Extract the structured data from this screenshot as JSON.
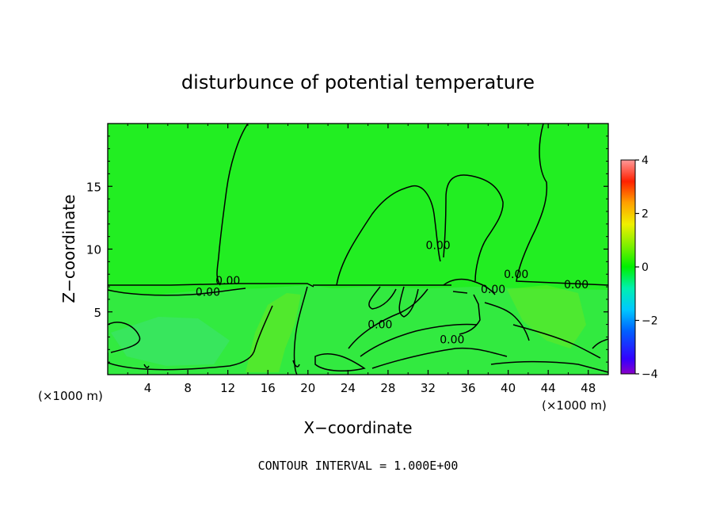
{
  "chart_data": {
    "type": "heatmap",
    "title": "disturbunce of potential temperature",
    "xlabel": "X−coordinate",
    "ylabel": "Z−coordinate",
    "x_unit": "(×1000 m)",
    "x_unit_right": "(×1000 m)",
    "xlim": [
      0,
      50
    ],
    "ylim": [
      0,
      20
    ],
    "xticks": [
      4,
      8,
      12,
      16,
      20,
      24,
      28,
      32,
      36,
      40,
      44,
      48
    ],
    "yticks": [
      5,
      10,
      15
    ],
    "footer": "CONTOUR INTERVAL = 1.000E+00",
    "colorbar": {
      "range": [
        -4,
        4
      ],
      "ticks": [
        -4,
        -2,
        0,
        2,
        4
      ],
      "tick_labels": [
        "−4",
        "−2",
        "0",
        "2",
        "4"
      ]
    },
    "field_value_approx": 0.2,
    "contour_labels": [
      {
        "text": "0.00",
        "x": 10.0,
        "z": 6.6
      },
      {
        "text": "0.00",
        "x": 12.0,
        "z": 7.5
      },
      {
        "text": "0.00",
        "x": 33.0,
        "z": 10.3
      },
      {
        "text": "0.00",
        "x": 38.5,
        "z": 6.8
      },
      {
        "text": "0.00",
        "x": 40.8,
        "z": 8.0
      },
      {
        "text": "0.00",
        "x": 46.8,
        "z": 7.2
      },
      {
        "text": "0.00",
        "x": 27.2,
        "z": 4.0
      },
      {
        "text": "0.00",
        "x": 34.4,
        "z": 2.8
      }
    ]
  }
}
